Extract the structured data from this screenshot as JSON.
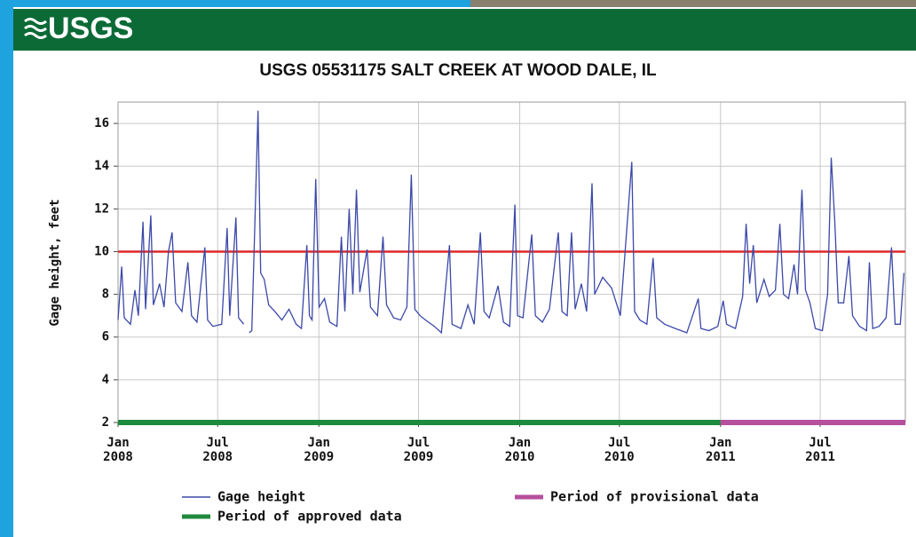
{
  "header": {
    "logo": "USGS"
  },
  "chart_data": {
    "type": "line",
    "title": "USGS 05531175 SALT CREEK AT WOOD DALE, IL",
    "y_label": "Gage height, feet",
    "xlim": [
      2008,
      2011.92
    ],
    "xticks": [
      {
        "value": 2008,
        "label": "Jan\n2008"
      },
      {
        "value": 2008.496,
        "label": "Jul\n2008"
      },
      {
        "value": 2009,
        "label": "Jan\n2009"
      },
      {
        "value": 2009.496,
        "label": "Jul\n2009"
      },
      {
        "value": 2010,
        "label": "Jan\n2010"
      },
      {
        "value": 2010.496,
        "label": "Jul\n2010"
      },
      {
        "value": 2011,
        "label": "Jan\n2011"
      },
      {
        "value": 2011.496,
        "label": "Jul\n2011"
      }
    ],
    "ylim": [
      2,
      17
    ],
    "yticks": [
      2,
      4,
      6,
      8,
      10,
      12,
      14,
      16
    ],
    "grid": true,
    "reference_line": {
      "value": 10,
      "color": "#e02828"
    },
    "x": [
      2008.0,
      2008.018,
      2008.031,
      2008.062,
      2008.084,
      2008.101,
      2008.124,
      2008.137,
      2008.163,
      2008.176,
      2008.207,
      2008.229,
      2008.251,
      2008.269,
      2008.287,
      2008.318,
      2008.348,
      2008.366,
      2008.393,
      2008.432,
      2008.446,
      2008.472,
      2008.516,
      2008.543,
      2008.556,
      2008.587,
      2008.6,
      2008.626,
      2008.64,
      2008.653,
      2008.666,
      2008.679,
      2008.697,
      2008.71,
      2008.728,
      2008.75,
      2008.781,
      2008.816,
      2008.851,
      2008.887,
      2008.913,
      2008.94,
      2008.953,
      2008.966,
      2008.984,
      2009.001,
      2009.028,
      2009.054,
      2009.09,
      2009.112,
      2009.129,
      2009.151,
      2009.169,
      2009.187,
      2009.204,
      2009.24,
      2009.257,
      2009.292,
      2009.319,
      2009.337,
      2009.372,
      2009.407,
      2009.438,
      2009.46,
      2009.478,
      2009.504,
      2009.531,
      2009.575,
      2009.61,
      2009.65,
      2009.663,
      2009.707,
      2009.742,
      2009.773,
      2009.804,
      2009.822,
      2009.848,
      2009.892,
      2009.919,
      2009.95,
      2009.976,
      2009.989,
      2010.016,
      2010.06,
      2010.078,
      2010.113,
      2010.148,
      2010.192,
      2010.21,
      2010.236,
      2010.258,
      2010.276,
      2010.307,
      2010.333,
      2010.36,
      2010.373,
      2010.413,
      2010.457,
      2010.501,
      2010.558,
      2010.572,
      2010.598,
      2010.633,
      2010.664,
      2010.682,
      2010.722,
      2010.775,
      2010.832,
      2010.889,
      2010.902,
      2010.942,
      2010.986,
      2011.013,
      2011.03,
      2011.074,
      2011.11,
      2011.127,
      2011.145,
      2011.163,
      2011.18,
      2011.216,
      2011.242,
      2011.273,
      2011.295,
      2011.313,
      2011.339,
      2011.366,
      2011.383,
      2011.405,
      2011.423,
      2011.445,
      2011.472,
      2011.507,
      2011.533,
      2011.551,
      2011.568,
      2011.586,
      2011.613,
      2011.639,
      2011.657,
      2011.692,
      2011.727,
      2011.741,
      2011.758,
      2011.789,
      2011.824,
      2011.851,
      2011.869,
      2011.895,
      2011.913
    ],
    "series": [
      {
        "name": "Gage height",
        "color": "#3b48a8",
        "values": [
          6.8,
          9.3,
          6.9,
          6.6,
          8.2,
          7.0,
          11.4,
          7.3,
          11.7,
          7.5,
          8.5,
          7.4,
          10.0,
          10.9,
          7.6,
          7.2,
          9.5,
          7.0,
          6.7,
          10.2,
          6.8,
          6.5,
          6.6,
          11.1,
          7.0,
          11.6,
          6.9,
          6.6,
          null,
          6.2,
          6.3,
          10.5,
          16.6,
          9.0,
          8.7,
          7.5,
          7.2,
          6.8,
          7.3,
          6.6,
          6.4,
          10.3,
          7.0,
          6.8,
          13.4,
          7.4,
          7.8,
          6.7,
          6.5,
          10.7,
          7.2,
          12.0,
          8.0,
          12.9,
          8.1,
          10.1,
          7.4,
          7.0,
          10.7,
          7.5,
          6.9,
          6.8,
          7.4,
          13.6,
          7.3,
          7.0,
          6.8,
          6.5,
          6.2,
          10.3,
          6.6,
          6.4,
          7.5,
          6.6,
          10.9,
          7.2,
          6.9,
          8.4,
          6.7,
          6.5,
          12.2,
          7.0,
          6.9,
          10.8,
          7.0,
          6.7,
          7.3,
          10.9,
          7.2,
          7.0,
          10.9,
          7.3,
          8.5,
          7.2,
          13.2,
          8.0,
          8.8,
          8.3,
          7.0,
          14.2,
          7.2,
          6.8,
          6.6,
          9.7,
          6.9,
          6.6,
          6.4,
          6.2,
          7.8,
          6.4,
          6.3,
          6.5,
          7.7,
          6.6,
          6.4,
          7.9,
          11.3,
          8.5,
          10.3,
          7.6,
          8.7,
          7.9,
          8.2,
          11.3,
          8.0,
          7.8,
          9.4,
          8.0,
          12.9,
          8.2,
          7.6,
          6.4,
          6.3,
          8.0,
          14.4,
          11.5,
          7.6,
          7.6,
          9.8,
          7.0,
          6.5,
          6.3,
          9.5,
          6.4,
          6.5,
          6.9,
          10.2,
          6.6,
          6.6,
          9.0
        ]
      }
    ],
    "periods": [
      {
        "name": "Period of approved data",
        "color": "#1d8a3c",
        "start": 2008,
        "end": 2011
      },
      {
        "name": "Period of provisional data",
        "color": "#b64f9e",
        "start": 2011,
        "end": 2011.92
      }
    ]
  }
}
